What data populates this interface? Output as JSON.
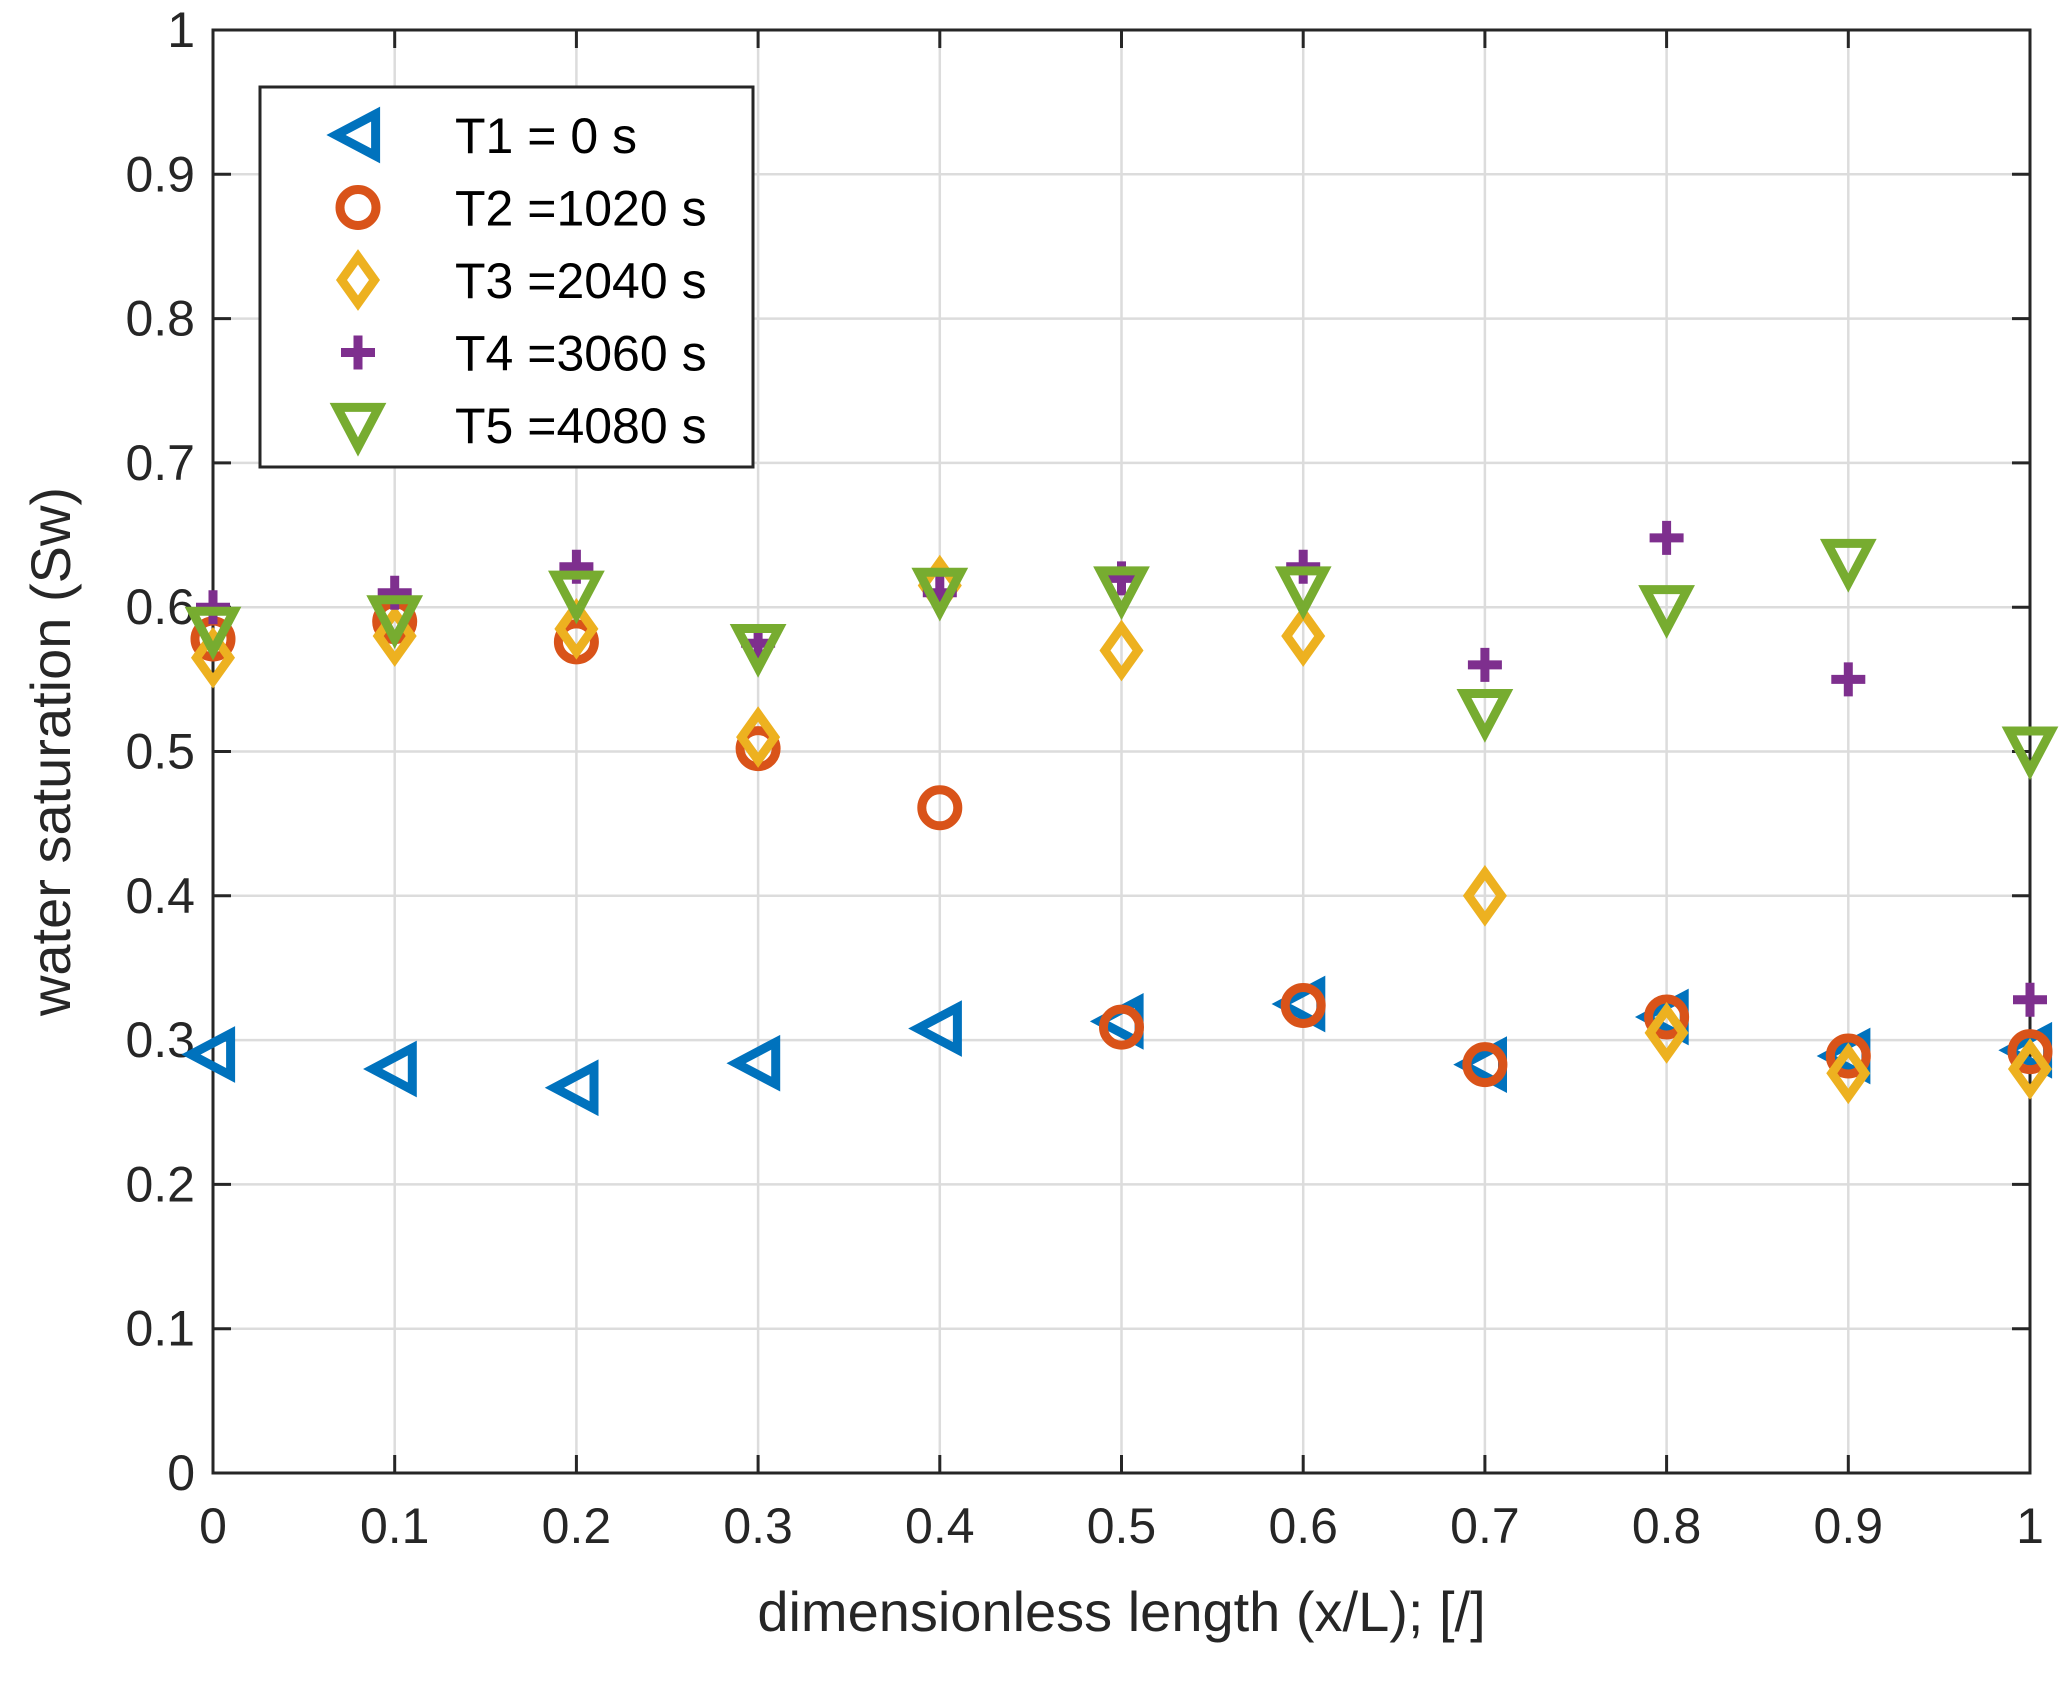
{
  "chart_data": {
    "type": "scatter",
    "title": "",
    "xlabel": "dimensionless length (x/L); [/]",
    "ylabel": "water saturation (Sw)",
    "xlim": [
      0,
      1
    ],
    "ylim": [
      0,
      1
    ],
    "xticks": [
      0,
      0.1,
      0.2,
      0.3,
      0.4,
      0.5,
      0.6,
      0.7,
      0.8,
      0.9,
      1
    ],
    "yticks": [
      0,
      0.1,
      0.2,
      0.3,
      0.4,
      0.5,
      0.6,
      0.7,
      0.8,
      0.9,
      1
    ],
    "xtick_labels": [
      "0",
      "0.1",
      "0.2",
      "0.3",
      "0.4",
      "0.5",
      "0.6",
      "0.7",
      "0.8",
      "0.9",
      "1"
    ],
    "ytick_labels": [
      "0",
      "0.1",
      "0.2",
      "0.3",
      "0.4",
      "0.5",
      "0.6",
      "0.7",
      "0.8",
      "0.9",
      "1"
    ],
    "grid": true,
    "legend_position": "top-left",
    "series": [
      {
        "name": "T1",
        "legend_label": "T1 =   0 s",
        "marker": "triangle-left",
        "color": "#0072BD",
        "x": [
          0,
          0.1,
          0.2,
          0.3,
          0.4,
          0.5,
          0.6,
          0.7,
          0.8,
          0.9,
          1
        ],
        "y": [
          0.29,
          0.28,
          0.267,
          0.284,
          0.308,
          0.313,
          0.325,
          0.283,
          0.316,
          0.289,
          0.293
        ]
      },
      {
        "name": "T2",
        "legend_label": "T2 =1020 s",
        "marker": "circle",
        "color": "#D95319",
        "x": [
          0,
          0.1,
          0.2,
          0.3,
          0.4,
          0.5,
          0.6,
          0.7,
          0.8,
          0.9,
          1
        ],
        "y": [
          0.578,
          0.59,
          0.576,
          0.502,
          0.461,
          0.309,
          0.324,
          0.283,
          0.316,
          0.289,
          0.292
        ]
      },
      {
        "name": "T3",
        "legend_label": "T3 =2040 s",
        "marker": "diamond",
        "color": "#EDB120",
        "x": [
          0,
          0.1,
          0.2,
          0.3,
          0.4,
          0.5,
          0.6,
          0.7,
          0.8,
          0.9,
          1
        ],
        "y": [
          0.565,
          0.58,
          0.585,
          0.51,
          0.615,
          0.57,
          0.58,
          0.4,
          0.305,
          0.277,
          0.28
        ]
      },
      {
        "name": "T4",
        "legend_label": "T4 =3060 s",
        "marker": "plus",
        "color": "#7E2F8E",
        "x": [
          0,
          0.1,
          0.2,
          0.3,
          0.4,
          0.5,
          0.6,
          0.7,
          0.8,
          0.9,
          1
        ],
        "y": [
          0.6,
          0.61,
          0.628,
          0.575,
          0.61,
          0.62,
          0.628,
          0.56,
          0.648,
          0.55,
          0.328
        ]
      },
      {
        "name": "T5",
        "legend_label": "T5 =4080 s",
        "marker": "triangle-down",
        "color": "#77AC30",
        "x": [
          0,
          0.1,
          0.2,
          0.3,
          0.4,
          0.5,
          0.6,
          0.7,
          0.8,
          0.9,
          1
        ],
        "y": [
          0.585,
          0.593,
          0.61,
          0.573,
          0.612,
          0.613,
          0.613,
          0.528,
          0.6,
          0.632,
          0.502
        ]
      }
    ]
  }
}
